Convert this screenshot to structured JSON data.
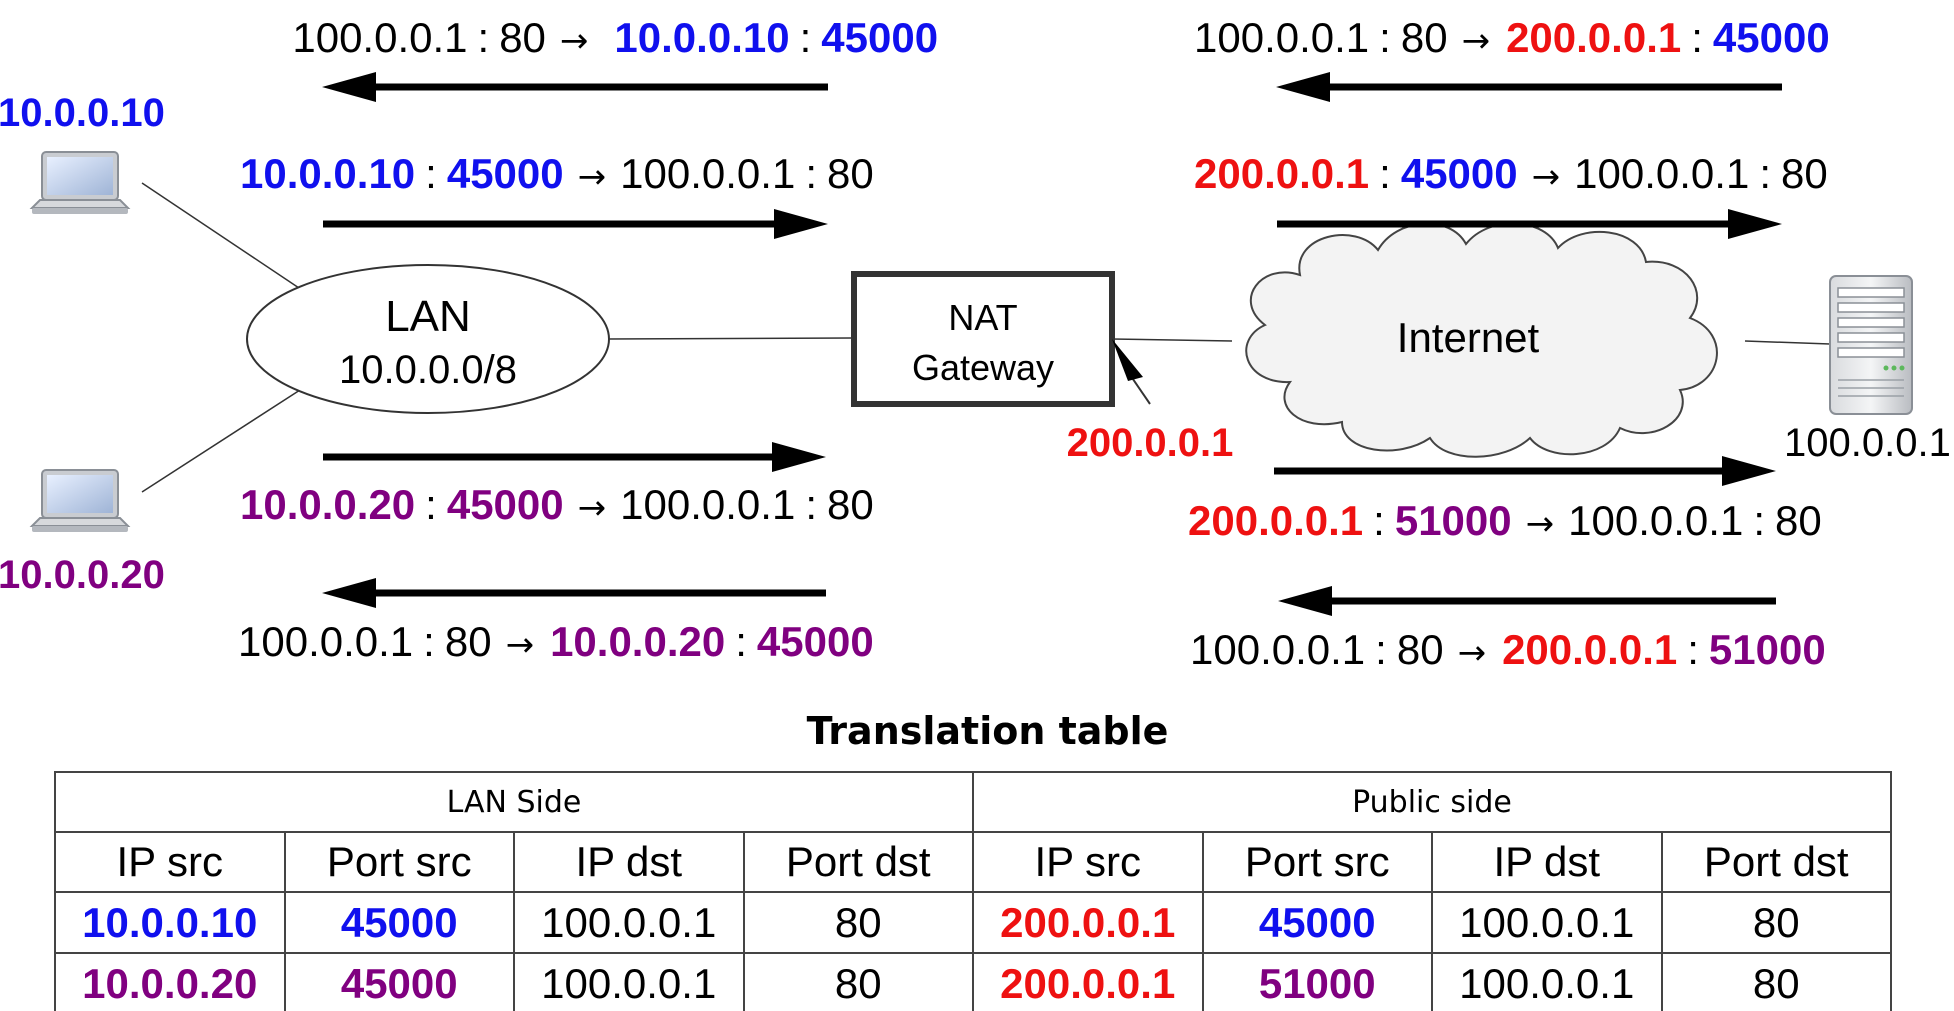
{
  "colors": {
    "host1": "#1010ee",
    "host2": "#800080",
    "public": "#ee1111",
    "text": "#000000"
  },
  "hosts": {
    "host1": {
      "ip": "10.0.0.10",
      "icon": "laptop-icon"
    },
    "host2": {
      "ip": "10.0.0.20",
      "icon": "laptop-icon"
    },
    "server": {
      "ip": "100.0.0.1",
      "icon": "server-icon"
    }
  },
  "lan": {
    "name": "LAN",
    "subnet": "10.0.0.0/8"
  },
  "nat": {
    "line1": "NAT",
    "line2": "Gateway",
    "public_ip": "200.0.0.1"
  },
  "internet": {
    "label": "Internet"
  },
  "sep": ":",
  "arrow": "→",
  "flows": {
    "lan_reply_1": [
      "100.0.0.1",
      "80",
      "10.0.0.10",
      "45000"
    ],
    "lan_req_1": [
      "10.0.0.10",
      "45000",
      "100.0.0.1",
      "80"
    ],
    "lan_req_2": [
      "10.0.0.20",
      "45000",
      "100.0.0.1",
      "80"
    ],
    "lan_reply_2": [
      "100.0.0.1",
      "80",
      "10.0.0.20",
      "45000"
    ],
    "wan_reply_1": [
      "100.0.0.1",
      "80",
      "200.0.0.1",
      "45000"
    ],
    "wan_req_1": [
      "200.0.0.1",
      "45000",
      "100.0.0.1",
      "80"
    ],
    "wan_req_2": [
      "200.0.0.1",
      "51000",
      "100.0.0.1",
      "80"
    ],
    "wan_reply_2": [
      "100.0.0.1",
      "80",
      "200.0.0.1",
      "51000"
    ]
  },
  "table": {
    "title": "Translation table",
    "groups": [
      "LAN Side",
      "Public side"
    ],
    "columns": [
      "IP src",
      "Port src",
      "IP dst",
      "Port dst",
      "IP src",
      "Port src",
      "IP dst",
      "Port dst"
    ],
    "rows": [
      [
        "10.0.0.10",
        "45000",
        "100.0.0.1",
        "80",
        "200.0.0.1",
        "45000",
        "100.0.0.1",
        "80"
      ],
      [
        "10.0.0.20",
        "45000",
        "100.0.0.1",
        "80",
        "200.0.0.1",
        "51000",
        "100.0.0.1",
        "80"
      ]
    ]
  }
}
